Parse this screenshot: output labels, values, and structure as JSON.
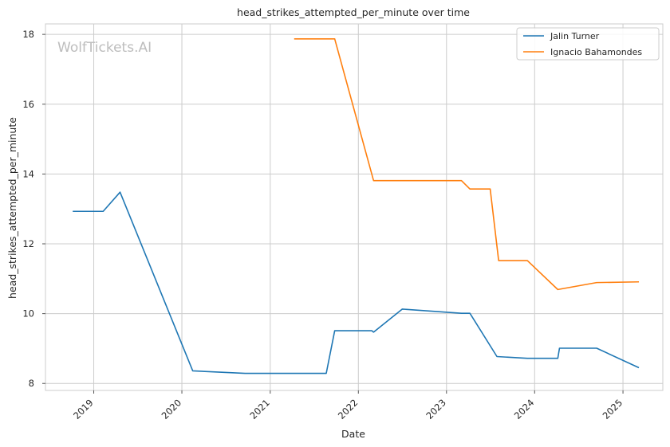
{
  "chart_data": {
    "type": "line",
    "title": "head_strikes_attempted_per_minute over time",
    "xlabel": "Date",
    "ylabel": "head_strikes_attempted_per_minute",
    "watermark": "WolfTickets.AI",
    "xlim": [
      "2018-06-15",
      "2025-06-15"
    ],
    "ylim": [
      7.8,
      18.3
    ],
    "x_ticks": [
      "2019",
      "2020",
      "2021",
      "2022",
      "2023",
      "2024",
      "2025"
    ],
    "y_ticks": [
      "8",
      "10",
      "12",
      "14",
      "16",
      "18"
    ],
    "grid": true,
    "legend_position": "top-right",
    "series": [
      {
        "name": "Jalin Turner",
        "color": "#1f77b4",
        "points": [
          [
            "2018-10-06",
            12.93
          ],
          [
            "2019-02-09",
            12.93
          ],
          [
            "2019-04-20",
            13.48
          ],
          [
            "2020-02-15",
            8.36
          ],
          [
            "2020-09-19",
            8.29
          ],
          [
            "2021-08-21",
            8.29
          ],
          [
            "2021-09-25",
            9.51
          ],
          [
            "2022-02-26",
            9.51
          ],
          [
            "2022-03-05",
            9.47
          ],
          [
            "2022-07-02",
            10.13
          ],
          [
            "2023-03-04",
            10.01
          ],
          [
            "2023-04-08",
            10.01
          ],
          [
            "2023-07-29",
            8.77
          ],
          [
            "2023-12-02",
            8.72
          ],
          [
            "2024-04-06",
            8.72
          ],
          [
            "2024-04-13",
            9.01
          ],
          [
            "2024-09-14",
            9.01
          ],
          [
            "2025-03-08",
            8.45
          ]
        ]
      },
      {
        "name": "Ignacio Bahamondes",
        "color": "#ff7f0e",
        "points": [
          [
            "2021-04-10",
            17.87
          ],
          [
            "2021-09-25",
            17.87
          ],
          [
            "2022-03-05",
            13.81
          ],
          [
            "2023-03-04",
            13.81
          ],
          [
            "2023-04-08",
            13.57
          ],
          [
            "2023-07-01",
            13.57
          ],
          [
            "2023-08-05",
            11.52
          ],
          [
            "2023-12-02",
            11.52
          ],
          [
            "2024-04-06",
            10.69
          ],
          [
            "2024-09-14",
            10.89
          ],
          [
            "2025-03-08",
            10.91
          ]
        ]
      }
    ]
  }
}
